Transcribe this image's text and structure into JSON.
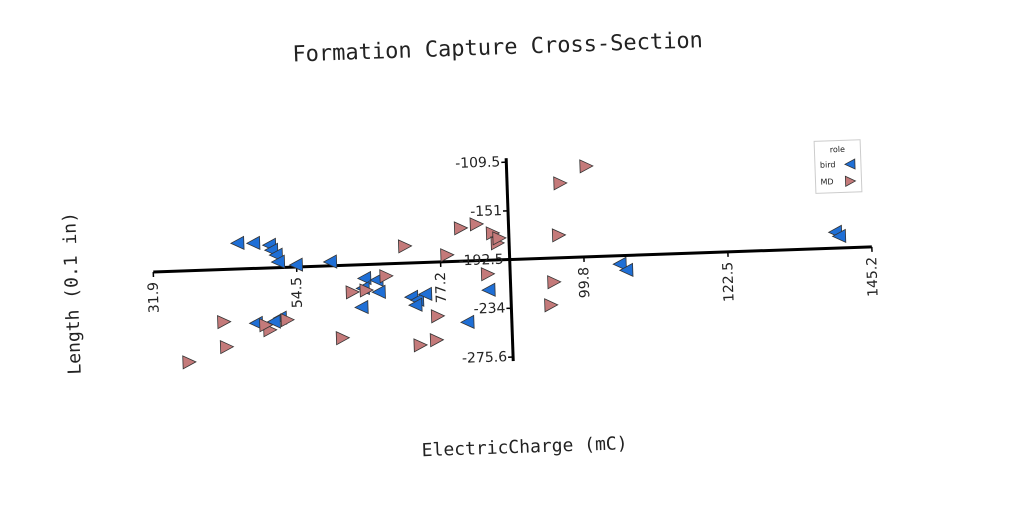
{
  "chart_data": {
    "type": "scatter",
    "title": "Formation Capture Cross-Section",
    "x_label": "ElectricCharge (mC)",
    "y_label": "Length (0.1 in)",
    "xlim": [
      31.9,
      145.2
    ],
    "ylim": [
      -275.6,
      -109.5
    ],
    "xticks": [
      31.9,
      54.5,
      77.2,
      99.8,
      122.5,
      145.2
    ],
    "yticks": [
      -109.5,
      -151.0,
      -192.5,
      -234.0,
      -275.6
    ],
    "x_axis_at": -192.5,
    "y_axis_at": 88.1,
    "legend_title": "role",
    "legend": "upper right",
    "series": [
      {
        "name": "bird",
        "color": "#1f6fd6",
        "marker": "left",
        "x": [
          45.3,
          47.8,
          50.3,
          50.6,
          51.3,
          51.6,
          54.4,
          59.8,
          65.1,
          64.8,
          67.0,
          67.3,
          64.5,
          72.4,
          73.3,
          74.6,
          73.0,
          84.6,
          81.1,
          51.6,
          50.6,
          47.8,
          105.4,
          106.4,
          139.5,
          140.1
        ],
        "y": [
          -170.4,
          -170.9,
          -173.0,
          -177.3,
          -181.6,
          -187.6,
          -190.7,
          -189.1,
          -204.1,
          -212.6,
          -206.0,
          -216.3,
          -228.7,
          -221.5,
          -224.2,
          -219.4,
          -228.4,
          -217.8,
          -244.5,
          -235.3,
          -238.5,
          -239.1,
          -199.6,
          -205.0,
          -178.8,
          -182.4
        ]
      },
      {
        "name": "MD",
        "color": "#c47a7a",
        "marker": "right",
        "x": [
          100.7,
          96.5,
          96.0,
          80.6,
          83.1,
          85.6,
          86.3,
          71.7,
          78.3,
          84.6,
          95.0,
          68.6,
          63.2,
          65.4,
          94.4,
          76.5,
          76.2,
          73.6,
          61.4,
          52.8,
          50.0,
          49.4,
          42.8,
          43.1,
          37.1,
          86.6
        ],
        "y": [
          -115.3,
          -129.0,
          -173.2,
          -164.3,
          -161.4,
          -169.5,
          -178.2,
          -178.0,
          -186.8,
          -204.2,
          -213.0,
          -202.9,
          -215.6,
          -214.4,
          -232.5,
          -238.5,
          -258.8,
          -262.7,
          -254.3,
          -237.3,
          -245.4,
          -241.0,
          -237.1,
          -258.5,
          -270.3,
          -174.0
        ]
      }
    ]
  }
}
